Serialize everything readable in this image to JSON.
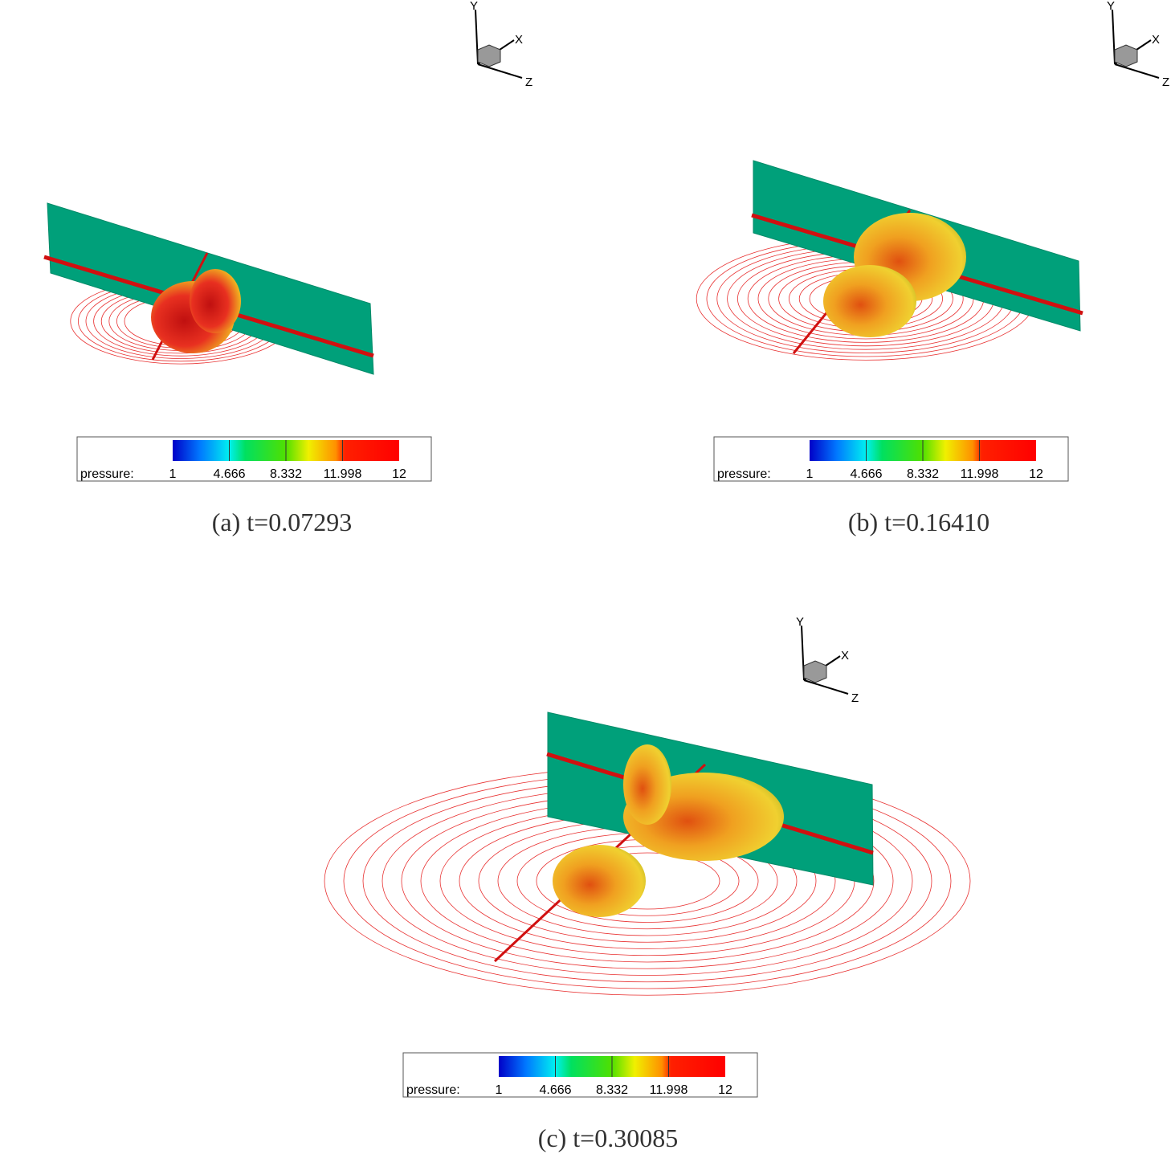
{
  "panels": [
    {
      "triad": {
        "y": "Y",
        "x": "X",
        "z": "Z"
      },
      "legend": {
        "label": "pressure:",
        "ticks": [
          "1",
          "4.666",
          "8.332",
          "11.998",
          "12"
        ]
      },
      "caption": "(a) t=0.07293"
    },
    {
      "triad": {
        "y": "Y",
        "x": "X",
        "z": "Z"
      },
      "legend": {
        "label": "pressure:",
        "ticks": [
          "1",
          "4.666",
          "8.332",
          "11.998",
          "12"
        ]
      },
      "caption": "(b) t=0.16410"
    },
    {
      "triad": {
        "y": "Y",
        "x": "X",
        "z": "Z"
      },
      "legend": {
        "label": "pressure:",
        "ticks": [
          "1",
          "4.666",
          "8.332",
          "11.998",
          "12"
        ]
      },
      "caption": "(c) t=0.30085"
    }
  ]
}
